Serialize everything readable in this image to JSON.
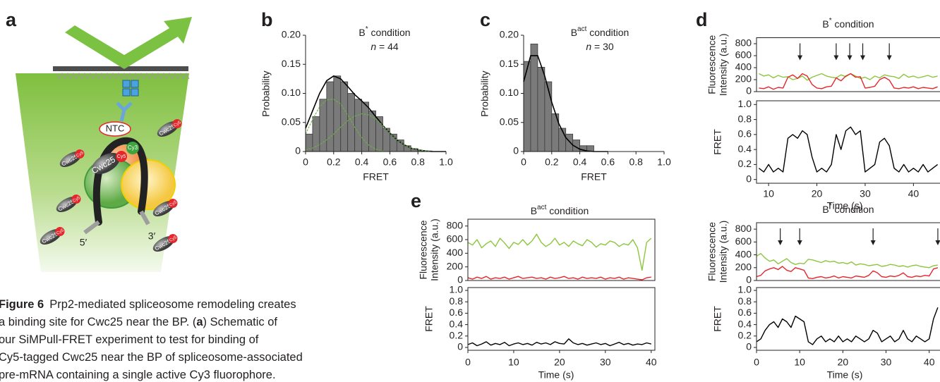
{
  "panel_labels": [
    "a",
    "b",
    "c",
    "d",
    "e"
  ],
  "schematic": {
    "labels": [
      "NTC",
      "Cy3",
      "Cy5",
      "Cwc25",
      "5′",
      "3′"
    ]
  },
  "caption": {
    "label": "Figure 6",
    "lines": [
      "Prp2-mediated spliceosome remodeling creates",
      [
        "a binding site for Cwc25 near the BP. (",
        "a",
        ") Schematic of"
      ],
      "our SiMPull-FRET experiment to test for binding of",
      "Cy5-tagged Cwc25 near the BP of spliceosome-associated",
      "pre-mRNA containing a single active Cy3 fluorophore."
    ]
  },
  "chart_data": [
    {
      "type": "histogram",
      "title": [
        "B",
        "*",
        " condition"
      ],
      "subtitle": [
        "n",
        " = 44"
      ],
      "xlabel": "FRET",
      "ylabel": "Probability",
      "color": "#7a7a7a",
      "bins": [
        0,
        0.05,
        0.1,
        0.15,
        0.2,
        0.25,
        0.3,
        0.35,
        0.4,
        0.45,
        0.5,
        0.55,
        0.6,
        0.65,
        0.7,
        0.75,
        0.8,
        0.85,
        0.9,
        0.95,
        1.0
      ],
      "values": [
        0.03,
        0.06,
        0.09,
        0.12,
        0.13,
        0.12,
        0.1,
        0.09,
        0.085,
        0.07,
        0.06,
        0.04,
        0.03,
        0.02,
        0.01,
        0.005,
        0.002,
        0.001,
        0,
        0
      ],
      "lines": [
        {
          "color": "#000000",
          "x": [
            0,
            0.05,
            0.1,
            0.15,
            0.2,
            0.25,
            0.3,
            0.35,
            0.4,
            0.45,
            0.5,
            0.55,
            0.6,
            0.65,
            0.7,
            0.75,
            0.8,
            0.85,
            0.9,
            0.95,
            1.0
          ],
          "values": [
            0.04,
            0.07,
            0.1,
            0.122,
            0.13,
            0.125,
            0.112,
            0.098,
            0.087,
            0.075,
            0.06,
            0.045,
            0.032,
            0.02,
            0.012,
            0.006,
            0.003,
            0.001,
            0,
            0,
            0
          ]
        },
        {
          "color": "#6cb33f",
          "x": [
            0,
            0.05,
            0.1,
            0.15,
            0.2,
            0.25,
            0.3,
            0.35,
            0.4,
            0.45,
            0.5,
            0.55,
            0.6,
            0.65,
            0.7
          ],
          "values": [
            0.03,
            0.055,
            0.077,
            0.089,
            0.09,
            0.082,
            0.063,
            0.042,
            0.024,
            0.011,
            0.004,
            0.001,
            0,
            0,
            0
          ]
        },
        {
          "color": "#6cb33f",
          "x": [
            0,
            0.05,
            0.1,
            0.15,
            0.2,
            0.25,
            0.3,
            0.35,
            0.4,
            0.45,
            0.5,
            0.55,
            0.6,
            0.65,
            0.7,
            0.75,
            0.8,
            0.85,
            0.9,
            0.95,
            1.0
          ],
          "values": [
            0.003,
            0.006,
            0.012,
            0.02,
            0.03,
            0.042,
            0.053,
            0.061,
            0.065,
            0.063,
            0.056,
            0.045,
            0.032,
            0.02,
            0.012,
            0.006,
            0.003,
            0.001,
            0,
            0,
            0
          ]
        }
      ],
      "xlim": [
        0,
        1.0
      ],
      "xticks": [
        0,
        0.2,
        0.4,
        0.6,
        0.8,
        {
          "value": 1.0,
          "label": "1.0"
        }
      ],
      "ylim": [
        0,
        0.2
      ],
      "yticks": [
        0,
        0.05,
        {
          "value": 0.1,
          "label": "0.10"
        },
        0.15,
        {
          "value": 0.2,
          "label": "0.20"
        }
      ]
    },
    {
      "type": "histogram",
      "title": [
        "B",
        "act",
        " condition"
      ],
      "subtitle": [
        "n",
        " = 30"
      ],
      "xlabel": "FRET",
      "ylabel": "Probability",
      "color": "#7a7a7a",
      "bins": [
        0,
        0.05,
        0.1,
        0.15,
        0.2,
        0.25,
        0.3,
        0.35,
        0.4,
        0.45,
        0.5
      ],
      "values": [
        0.155,
        0.185,
        0.145,
        0.12,
        0.065,
        0.04,
        0.03,
        0.02,
        0.01,
        0.01
      ],
      "lines": [
        {
          "color": "#000000",
          "x": [
            0,
            0.05,
            0.1,
            0.15,
            0.2,
            0.25,
            0.3,
            0.35,
            0.4,
            0.45,
            0.5,
            0.55,
            0.6
          ],
          "values": [
            0.12,
            0.165,
            0.165,
            0.13,
            0.085,
            0.048,
            0.024,
            0.011,
            0.004,
            0.001,
            0,
            0,
            0
          ]
        }
      ],
      "xlim": [
        0,
        1.0
      ],
      "xticks": [
        0,
        0.2,
        0.4,
        0.6,
        0.8,
        {
          "value": 1.0,
          "label": "1.0"
        }
      ],
      "ylim": [
        0,
        0.2
      ],
      "yticks": [
        0,
        0.05,
        {
          "value": 0.1,
          "label": "0.10"
        },
        0.15,
        {
          "value": 0.2,
          "label": "0.20"
        }
      ]
    },
    {
      "type": "trace",
      "title": [
        "B",
        "*",
        " condition"
      ],
      "ylabel": [
        "Fluorescence",
        "Intensity (a.u.)"
      ],
      "y2label": "FRET",
      "xlabel": "Time (s)",
      "arrows": [
        16.5,
        24,
        26.8,
        29.5,
        35
      ],
      "x": [
        8,
        9,
        10,
        11,
        12,
        13,
        14,
        15,
        16,
        17,
        18,
        19,
        20,
        21,
        22,
        23,
        24,
        25,
        26,
        27,
        28,
        29,
        30,
        31,
        32,
        33,
        34,
        35,
        36,
        37,
        38,
        39,
        40,
        41,
        42,
        43,
        44,
        45
      ],
      "series": [
        {
          "color": "#8cc63f",
          "axis": "y",
          "values": [
            300,
            260,
            280,
            230,
            270,
            240,
            250,
            200,
            220,
            260,
            190,
            240,
            270,
            300,
            260,
            240,
            230,
            280,
            250,
            300,
            260,
            220,
            240,
            200,
            260,
            230,
            280,
            260,
            250,
            220,
            290,
            240,
            260,
            230,
            250,
            270,
            240,
            260
          ]
        },
        {
          "color": "#e5262b",
          "axis": "y",
          "values": [
            60,
            50,
            80,
            40,
            70,
            60,
            240,
            280,
            220,
            300,
            260,
            120,
            60,
            50,
            80,
            90,
            230,
            180,
            260,
            300,
            240,
            250,
            60,
            70,
            90,
            200,
            240,
            190,
            60,
            50,
            70,
            60,
            80,
            50,
            70,
            60,
            50,
            80
          ]
        },
        {
          "color": "#000000",
          "axis": "y2",
          "values": [
            0.15,
            0.1,
            0.2,
            0.1,
            0.15,
            0.1,
            0.55,
            0.6,
            0.55,
            0.65,
            0.6,
            0.3,
            0.1,
            0.15,
            0.1,
            0.2,
            0.6,
            0.4,
            0.65,
            0.7,
            0.6,
            0.65,
            0.1,
            0.15,
            0.2,
            0.5,
            0.55,
            0.45,
            0.15,
            0.1,
            0.2,
            0.1,
            0.15,
            0.1,
            0.2,
            0.1,
            0.15,
            0.2
          ]
        }
      ],
      "xlim": [
        7.5,
        45.5
      ],
      "xticks": [
        10,
        20,
        30,
        40
      ],
      "ylim": [
        0,
        900
      ],
      "yticks": [
        0,
        200,
        400,
        600,
        800
      ],
      "y2lim": [
        -0.05,
        1.05
      ],
      "y2ticks": [
        0,
        0.2,
        0.4,
        0.6,
        0.8,
        {
          "value": 1.0,
          "label": "1.0"
        }
      ]
    },
    {
      "type": "trace",
      "title": [
        "B",
        "*",
        " condition"
      ],
      "ylabel": [
        "Fluorescence",
        "Intensity (a.u.)"
      ],
      "y2label": "FRET",
      "xlabel": "Time (s)",
      "arrows": [
        5.5,
        10,
        27,
        42
      ],
      "x": [
        0,
        1,
        2,
        3,
        4,
        5,
        6,
        7,
        8,
        9,
        10,
        11,
        12,
        13,
        14,
        15,
        16,
        17,
        18,
        19,
        20,
        21,
        22,
        23,
        24,
        25,
        26,
        27,
        28,
        29,
        30,
        31,
        32,
        33,
        34,
        35,
        36,
        37,
        38,
        39,
        40,
        41,
        42
      ],
      "series": [
        {
          "color": "#8cc63f",
          "axis": "y",
          "values": [
            380,
            420,
            350,
            300,
            320,
            260,
            300,
            340,
            280,
            250,
            270,
            260,
            330,
            320,
            300,
            280,
            310,
            290,
            300,
            270,
            280,
            260,
            290,
            240,
            260,
            250,
            230,
            240,
            250,
            220,
            230,
            250,
            240,
            220,
            230,
            210,
            230,
            240,
            220,
            210,
            200,
            230,
            240
          ]
        },
        {
          "color": "#e5262b",
          "axis": "y",
          "values": [
            60,
            80,
            150,
            180,
            200,
            170,
            220,
            160,
            140,
            200,
            180,
            160,
            40,
            30,
            50,
            60,
            40,
            50,
            70,
            40,
            60,
            50,
            40,
            70,
            60,
            50,
            80,
            150,
            120,
            60,
            50,
            70,
            60,
            80,
            120,
            60,
            50,
            70,
            60,
            80,
            70,
            180,
            200
          ]
        },
        {
          "color": "#000000",
          "axis": "y2",
          "values": [
            0.1,
            0.15,
            0.3,
            0.4,
            0.45,
            0.35,
            0.5,
            0.45,
            0.35,
            0.55,
            0.5,
            0.45,
            0.1,
            0.05,
            0.15,
            0.2,
            0.1,
            0.15,
            0.1,
            0.2,
            0.1,
            0.15,
            0.1,
            0.2,
            0.15,
            0.1,
            0.15,
            0.3,
            0.25,
            0.1,
            0.15,
            0.2,
            0.1,
            0.15,
            0.3,
            0.15,
            0.1,
            0.2,
            0.15,
            0.1,
            0.15,
            0.5,
            0.7
          ]
        }
      ],
      "xlim": [
        0,
        42.5
      ],
      "xticks": [
        0,
        10,
        20,
        30,
        40
      ],
      "ylim": [
        0,
        900
      ],
      "yticks": [
        0,
        200,
        400,
        600,
        800
      ],
      "y2lim": [
        -0.05,
        1.05
      ],
      "y2ticks": [
        0,
        0.2,
        0.4,
        0.6,
        0.8,
        {
          "value": 1.0,
          "label": "1.0"
        }
      ]
    },
    {
      "type": "trace",
      "title": [
        "B",
        "act",
        " condition"
      ],
      "ylabel": [
        "Fluorescence",
        "Intensity (a.u.)"
      ],
      "y2label": "FRET",
      "xlabel": "Time (s)",
      "x": [
        0,
        1,
        2,
        3,
        4,
        5,
        6,
        7,
        8,
        9,
        10,
        11,
        12,
        13,
        14,
        15,
        16,
        17,
        18,
        19,
        20,
        21,
        22,
        23,
        24,
        25,
        26,
        27,
        28,
        29,
        30,
        31,
        32,
        33,
        34,
        35,
        36,
        37,
        38,
        39,
        40
      ],
      "series": [
        {
          "color": "#8cc63f",
          "axis": "y",
          "values": [
            560,
            520,
            600,
            480,
            540,
            580,
            500,
            620,
            550,
            470,
            560,
            530,
            600,
            520,
            580,
            680,
            560,
            500,
            540,
            620,
            520,
            560,
            500,
            580,
            540,
            510,
            600,
            560,
            490,
            540,
            520,
            580,
            560,
            500,
            540,
            520,
            600,
            480,
            150,
            560,
            620
          ]
        },
        {
          "color": "#e5262b",
          "axis": "y",
          "values": [
            40,
            20,
            50,
            30,
            60,
            20,
            40,
            30,
            50,
            20,
            40,
            60,
            30,
            40,
            50,
            30,
            40,
            20,
            50,
            30,
            40,
            60,
            30,
            40,
            20,
            50,
            30,
            40,
            30,
            50,
            20,
            40,
            30,
            50,
            20,
            40,
            30,
            20,
            10,
            40,
            50
          ]
        },
        {
          "color": "#000000",
          "axis": "y2",
          "values": [
            0.05,
            0.08,
            0.03,
            0.06,
            0.1,
            0.04,
            0.07,
            0.05,
            0.09,
            0.03,
            0.06,
            0.08,
            0.05,
            0.07,
            0.04,
            0.09,
            0.06,
            0.08,
            0.05,
            0.1,
            0.07,
            0.06,
            0.15,
            0.08,
            0.05,
            0.07,
            0.04,
            0.06,
            0.08,
            0.05,
            0.07,
            0.03,
            0.06,
            0.09,
            0.05,
            0.07,
            0.04,
            0.06,
            0.05,
            0.08,
            0.06
          ]
        }
      ],
      "xlim": [
        0,
        40.5
      ],
      "xticks": [
        0,
        10,
        20,
        30,
        40
      ],
      "ylim": [
        0,
        900
      ],
      "yticks": [
        0,
        200,
        400,
        600,
        800
      ],
      "y2lim": [
        -0.05,
        1.05
      ],
      "y2ticks": [
        0,
        0.2,
        0.4,
        0.6,
        0.8,
        {
          "value": 1.0,
          "label": "1.0"
        }
      ]
    }
  ]
}
